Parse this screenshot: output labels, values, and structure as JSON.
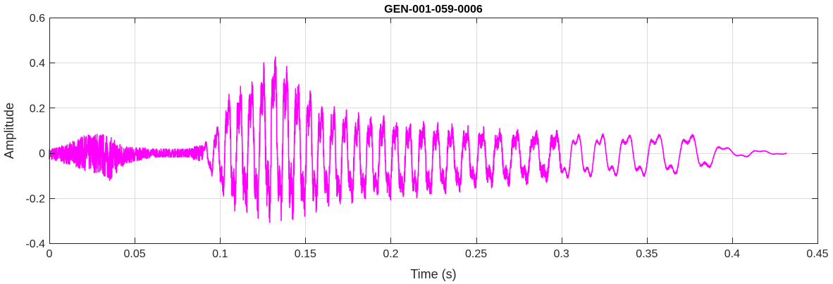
{
  "chart_data": {
    "type": "line",
    "title": "GEN-001-059-0006",
    "xlabel": "Time (s)",
    "ylabel": "Amplitude",
    "xlim": [
      0,
      0.45
    ],
    "ylim": [
      -0.4,
      0.6
    ],
    "xticks": [
      0,
      0.05,
      0.1,
      0.15,
      0.2,
      0.25,
      0.3,
      0.35,
      0.4,
      0.45
    ],
    "xtick_labels": [
      "0",
      "0.05",
      "0.1",
      "0.15",
      "0.2",
      "0.25",
      "0.3",
      "0.35",
      "0.4",
      "0.45"
    ],
    "yticks": [
      -0.4,
      -0.2,
      0,
      0.2,
      0.4,
      0.6
    ],
    "ytick_labels": [
      "-0.4",
      "-0.2",
      "0",
      "0.2",
      "0.4",
      "0.6"
    ],
    "grid": true,
    "series": [
      {
        "color": "#ff00ff",
        "signal_duration_s": 0.432,
        "envelope": {
          "x": [
            0,
            0.01,
            0.02,
            0.03,
            0.035,
            0.045,
            0.06,
            0.08,
            0.09,
            0.095,
            0.1,
            0.105,
            0.11,
            0.12,
            0.13,
            0.135,
            0.14,
            0.15,
            0.16,
            0.18,
            0.2,
            0.22,
            0.25,
            0.28,
            0.3,
            0.33,
            0.35,
            0.37,
            0.385,
            0.39,
            0.4,
            0.41,
            0.42,
            0.432
          ],
          "upper": [
            0.02,
            0.04,
            0.08,
            0.1,
            0.08,
            0.03,
            0.02,
            0.02,
            0.04,
            0.07,
            0.15,
            0.27,
            0.3,
            0.37,
            0.45,
            0.43,
            0.38,
            0.3,
            0.22,
            0.18,
            0.16,
            0.14,
            0.12,
            0.1,
            0.1,
            0.1,
            0.1,
            0.1,
            0.09,
            0.05,
            0.02,
            0.02,
            0.01,
            0.005
          ],
          "lower": [
            -0.03,
            -0.05,
            -0.08,
            -0.1,
            -0.13,
            -0.05,
            -0.02,
            -0.02,
            -0.04,
            -0.1,
            -0.17,
            -0.22,
            -0.27,
            -0.29,
            -0.31,
            -0.3,
            -0.3,
            -0.28,
            -0.25,
            -0.22,
            -0.22,
            -0.2,
            -0.16,
            -0.14,
            -0.13,
            -0.12,
            -0.12,
            -0.11,
            -0.09,
            -0.05,
            -0.02,
            -0.02,
            -0.01,
            -0.005
          ]
        }
      }
    ]
  }
}
